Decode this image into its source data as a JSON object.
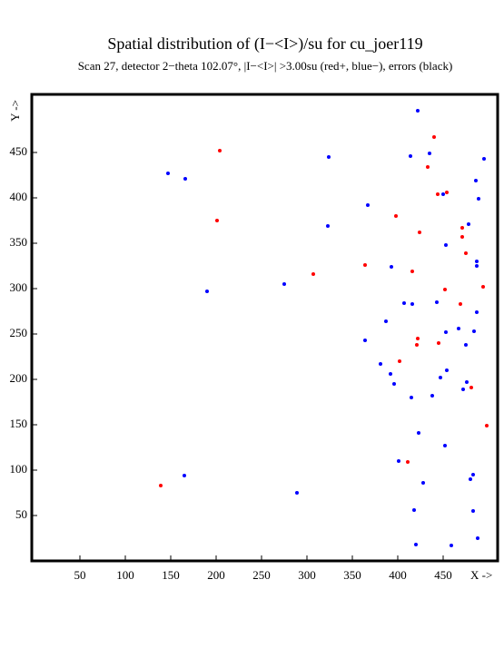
{
  "chart_data": {
    "type": "scatter",
    "title": "Spatial distribution of (I−<I>)/su for cu_joer119",
    "subtitle": "Scan 27, detector 2−theta 102.07°, |I−<I>| >3.00su (red+, blue−), errors (black)",
    "x_label": "X ->",
    "y_label": "Y ->",
    "xlim": [
      -3,
      510
    ],
    "ylim": [
      0,
      514
    ],
    "xticks": [
      50,
      100,
      150,
      200,
      250,
      300,
      350,
      400,
      450
    ],
    "yticks": [
      50,
      100,
      150,
      200,
      250,
      300,
      350,
      400,
      450
    ],
    "series": [
      {
        "color": "#ff0000",
        "x": [
          204,
          440,
          433,
          454,
          444,
          201,
          398,
          424,
          471,
          471,
          475,
          364,
          416,
          307,
          452,
          494,
          469,
          422,
          421,
          445,
          402,
          481,
          498,
          411,
          139
        ],
        "values": [
          452,
          467,
          434,
          406,
          404,
          375,
          380,
          362,
          367,
          357,
          339,
          326,
          319,
          316,
          299,
          302,
          283,
          245,
          238,
          240,
          220,
          191,
          149,
          109,
          83
        ]
      },
      {
        "color": "#0000ff",
        "x": [
          422,
          147,
          166,
          324,
          414,
          435,
          495,
          486,
          489,
          450,
          367,
          323,
          478,
          453,
          487,
          487,
          393,
          190,
          275,
          407,
          416,
          443,
          487,
          387,
          467,
          453,
          484,
          364,
          475,
          381,
          454,
          447,
          392,
          476,
          396,
          472,
          438,
          415,
          423,
          452,
          401,
          165,
          483,
          480,
          428,
          289,
          418,
          483,
          488,
          420,
          459
        ],
        "values": [
          496,
          427,
          421,
          445,
          446,
          449,
          443,
          419,
          399,
          404,
          392,
          369,
          371,
          348,
          330,
          325,
          324,
          297,
          305,
          284,
          283,
          285,
          274,
          264,
          256,
          252,
          253,
          243,
          238,
          217,
          210,
          202,
          206,
          197,
          195,
          189,
          182,
          180,
          141,
          127,
          110,
          94,
          95,
          90,
          86,
          75,
          56,
          55,
          25,
          18,
          17
        ]
      }
    ]
  }
}
